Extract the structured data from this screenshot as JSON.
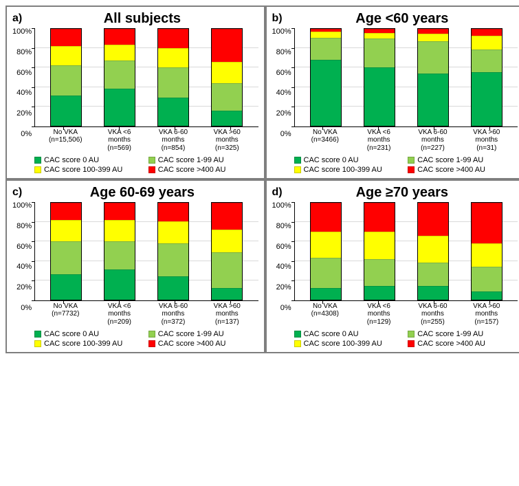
{
  "colors": {
    "cac0": "#00b050",
    "cac1": "#92d050",
    "cac100": "#ffff00",
    "cac400": "#ff0000",
    "grid": "#d9d9d9",
    "border": "#7f7f7f"
  },
  "y_ticks": [
    "0%",
    "20%",
    "40%",
    "60%",
    "80%",
    "100%"
  ],
  "legend": [
    {
      "key": "cac0",
      "label": "CAC score 0 AU"
    },
    {
      "key": "cac1",
      "label": "CAC score 1-99 AU"
    },
    {
      "key": "cac100",
      "label": "CAC score 100-399 AU"
    },
    {
      "key": "cac400",
      "label": "CAC score >400 AU"
    }
  ],
  "panels": [
    {
      "letter": "a)",
      "title": "All subjects",
      "bars": [
        {
          "label1": "No VKA",
          "label2": "(n=15,506)",
          "seg": {
            "cac0": 31,
            "cac1": 31,
            "cac100": 20,
            "cac400": 18
          }
        },
        {
          "label1": "VKA <6",
          "label2": "months",
          "label3": "(n=569)",
          "seg": {
            "cac0": 38,
            "cac1": 29,
            "cac100": 17,
            "cac400": 16
          }
        },
        {
          "label1": "VKA 6-60",
          "label2": "months",
          "label3": "(n=854)",
          "seg": {
            "cac0": 29,
            "cac1": 31,
            "cac100": 20,
            "cac400": 20
          }
        },
        {
          "label1": "VKA >60",
          "label2": "months",
          "label3": "(n=325)",
          "seg": {
            "cac0": 15,
            "cac1": 29,
            "cac100": 22,
            "cac400": 34
          }
        }
      ]
    },
    {
      "letter": "b)",
      "title": "Age <60 years",
      "bars": [
        {
          "label1": "No VKA",
          "label2": "(n=3466)",
          "seg": {
            "cac0": 68,
            "cac1": 23,
            "cac100": 6,
            "cac400": 3
          }
        },
        {
          "label1": "VKA <6",
          "label2": "months",
          "label3": "(n=231)",
          "seg": {
            "cac0": 60,
            "cac1": 30,
            "cac100": 6,
            "cac400": 4
          }
        },
        {
          "label1": "VKA 6-60",
          "label2": "months",
          "label3": "(n=227)",
          "seg": {
            "cac0": 54,
            "cac1": 33,
            "cac100": 8,
            "cac400": 5
          }
        },
        {
          "label1": "VKA >60",
          "label2": "months",
          "label3": "(n=31)",
          "seg": {
            "cac0": 55,
            "cac1": 24,
            "cac100": 14,
            "cac400": 7
          }
        }
      ]
    },
    {
      "letter": "c)",
      "title": "Age 60-69 years",
      "bars": [
        {
          "label1": "No VKA",
          "label2": "(n=7732)",
          "seg": {
            "cac0": 26,
            "cac1": 34,
            "cac100": 22,
            "cac400": 18
          }
        },
        {
          "label1": "VKA <6",
          "label2": "months",
          "label3": "(n=209)",
          "seg": {
            "cac0": 31,
            "cac1": 29,
            "cac100": 22,
            "cac400": 18
          }
        },
        {
          "label1": "VKA 6-60",
          "label2": "months",
          "label3": "(n=372)",
          "seg": {
            "cac0": 24,
            "cac1": 34,
            "cac100": 23,
            "cac400": 19
          }
        },
        {
          "label1": "VKA >60",
          "label2": "months",
          "label3": "(n=137)",
          "seg": {
            "cac0": 12,
            "cac1": 37,
            "cac100": 23,
            "cac400": 28
          }
        }
      ]
    },
    {
      "letter": "d)",
      "title": "Age ≥70 years",
      "bars": [
        {
          "label1": "No VKA",
          "label2": "(n=4308)",
          "seg": {
            "cac0": 12,
            "cac1": 31,
            "cac100": 27,
            "cac400": 30
          }
        },
        {
          "label1": "VKA <6",
          "label2": "months",
          "label3": "(n=129)",
          "seg": {
            "cac0": 14,
            "cac1": 28,
            "cac100": 28,
            "cac400": 30
          }
        },
        {
          "label1": "VKA 6-60",
          "label2": "months",
          "label3": "(n=255)",
          "seg": {
            "cac0": 14,
            "cac1": 24,
            "cac100": 28,
            "cac400": 34
          }
        },
        {
          "label1": "VKA >60",
          "label2": "months",
          "label3": "(n=157)",
          "seg": {
            "cac0": 8,
            "cac1": 26,
            "cac100": 24,
            "cac400": 42
          }
        }
      ]
    }
  ]
}
